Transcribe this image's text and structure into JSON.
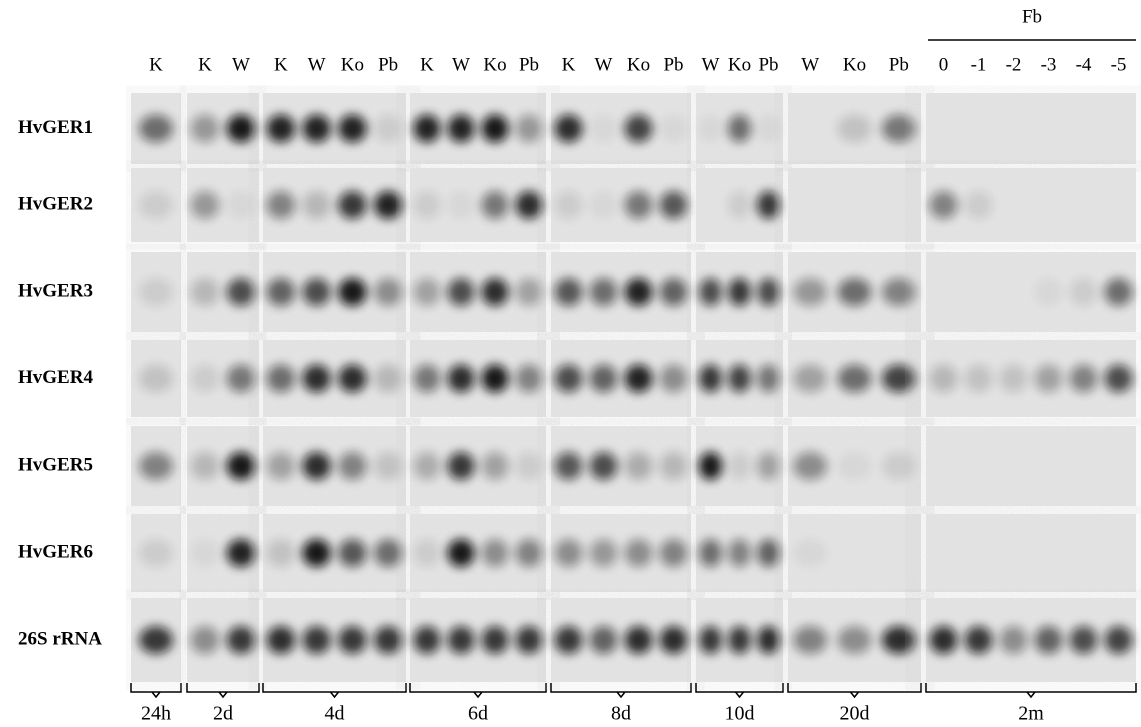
{
  "rows": [
    "HvGER1",
    "HvGER2",
    "HvGER3",
    "HvGER4",
    "HvGER5",
    "HvGER6",
    "26S rRNA"
  ],
  "groups": [
    {
      "label": "24h",
      "lanes": [
        "K"
      ]
    },
    {
      "label": "2d",
      "lanes": [
        "K",
        "W"
      ]
    },
    {
      "label": "4d",
      "lanes": [
        "K",
        "W",
        "Ko",
        "Pb"
      ]
    },
    {
      "label": "6d",
      "lanes": [
        "K",
        "W",
        "Ko",
        "Pb"
      ]
    },
    {
      "label": "8d",
      "lanes": [
        "K",
        "W",
        "Ko",
        "Pb"
      ]
    },
    {
      "label": "10d",
      "lanes": [
        "W",
        "Ko",
        "Pb"
      ]
    },
    {
      "label": "20d",
      "lanes": [
        "W",
        "Ko",
        "Pb"
      ]
    },
    {
      "label": "2m",
      "header": "Fb",
      "lanes": [
        "0",
        "-1",
        "-2",
        "-3",
        "-4",
        "-5"
      ]
    }
  ]
}
